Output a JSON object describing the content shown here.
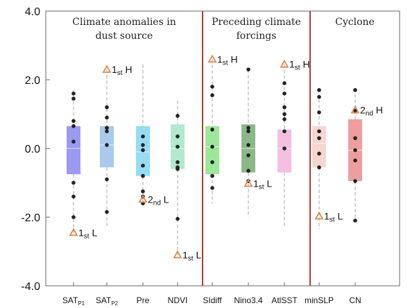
{
  "chart_data": {
    "type": "box",
    "ylim": [
      -4.0,
      4.0
    ],
    "yticks": [
      {
        "value": 4.0,
        "label": "4.0"
      },
      {
        "value": 2.0,
        "label": "2.0"
      },
      {
        "value": 0.0,
        "label": "0.0"
      },
      {
        "value": -2.0,
        "label": "-2.0"
      },
      {
        "value": -4.0,
        "label": "-4.0"
      }
    ],
    "sections": [
      {
        "title": [
          "Climate anomalies in",
          "dust source"
        ],
        "from": 0,
        "to": 3
      },
      {
        "title": [
          "Preceding climate",
          "forcings"
        ],
        "from": 4,
        "to": 6
      },
      {
        "title": [
          "Cyclone"
        ],
        "from": 7,
        "to": 8
      }
    ],
    "categories": [
      {
        "label": "SAT",
        "sub": "P1",
        "color": "#8f8ff0",
        "q1": -0.75,
        "median": 0.0,
        "q3": 0.65,
        "whisker_low": -2.45,
        "whisker_high": 1.7,
        "points": [
          1.6,
          1.45,
          0.8,
          0.65,
          0.2,
          -1.0,
          -1.4,
          -2.0
        ],
        "annotation": {
          "y": -2.45,
          "text": "1",
          "sub": "st",
          "suffix": " L"
        }
      },
      {
        "label": "SAT",
        "sub": "P2",
        "color": "#9fc4ea",
        "q1": -0.55,
        "median": 0.1,
        "q3": 0.65,
        "whisker_low": -2.25,
        "whisker_high": 2.3,
        "points": [
          1.2,
          0.9,
          0.6,
          0.5,
          0.1,
          -0.9,
          -1.85
        ],
        "annotation": {
          "y": 2.3,
          "text": "1",
          "sub": "st",
          "suffix": " H"
        }
      },
      {
        "label": "Pre",
        "sub": "",
        "color": "#8ad8f4",
        "q1": -0.8,
        "median": -0.1,
        "q3": 0.65,
        "whisker_low": -1.6,
        "whisker_high": 2.45,
        "points": [
          0.35,
          0.1,
          -0.05,
          -0.5,
          -0.8,
          -1.25,
          -1.4,
          -1.6
        ],
        "annotation": {
          "y": -1.48,
          "text": "2",
          "sub": "nd",
          "suffix": " L"
        }
      },
      {
        "label": "NDVI",
        "sub": "",
        "color": "#a9e6c9",
        "q1": -0.6,
        "median": 0.0,
        "q3": 0.7,
        "whisker_low": -3.1,
        "whisker_high": 1.4,
        "points": [
          0.95,
          0.35,
          0.05,
          -0.4,
          -0.55,
          -0.6,
          -2.05
        ],
        "annotation": {
          "y": -3.1,
          "text": "1",
          "sub": "st",
          "suffix": " L"
        }
      },
      {
        "label": "SIdiff",
        "sub": "",
        "color": "#90e58f",
        "q1": -0.75,
        "median": 0.05,
        "q3": 0.65,
        "whisker_low": -1.6,
        "whisker_high": 2.6,
        "points": [
          1.8,
          1.55,
          0.55,
          0.05,
          -0.4,
          -0.8,
          -1.15
        ],
        "annotation": {
          "y": 2.6,
          "text": "1",
          "sub": "st",
          "suffix": " H"
        }
      },
      {
        "label": "Nino3.4",
        "sub": "",
        "color": "#7fb07c",
        "q1": -0.7,
        "median": 0.0,
        "q3": 0.7,
        "whisker_low": -2.0,
        "whisker_high": 2.3,
        "points": [
          2.3,
          0.6,
          0.5,
          0.1,
          -0.2,
          -0.65,
          -0.95
        ],
        "annotation": {
          "y": -1.02,
          "text": "1",
          "sub": "st",
          "suffix": " L"
        }
      },
      {
        "label": "AtlSST",
        "sub": "",
        "color": "#f3b8de",
        "q1": -0.7,
        "median": 0.0,
        "q3": 0.55,
        "whisker_low": -2.25,
        "whisker_high": 2.45,
        "points": [
          1.9,
          1.6,
          1.2,
          1.0,
          0.85,
          0.5,
          0.0
        ],
        "annotation": {
          "y": 2.45,
          "text": "1",
          "sub": "st",
          "suffix": " H"
        }
      },
      {
        "label": "minSLP",
        "sub": "",
        "color": "#f6d2cb",
        "q1": -0.55,
        "median": 0.15,
        "q3": 0.65,
        "whisker_low": -2.35,
        "whisker_high": 1.75,
        "points": [
          1.7,
          1.5,
          1.05,
          0.5,
          0.3,
          -0.15,
          -0.55
        ],
        "annotation": {
          "y": -1.97,
          "text": "1",
          "sub": "st",
          "suffix": " L"
        }
      },
      {
        "label": "CN",
        "sub": "",
        "color": "#ec9394",
        "q1": -0.95,
        "median": -0.05,
        "q3": 0.85,
        "whisker_low": -2.1,
        "whisker_high": 1.75,
        "points": [
          1.7,
          1.1,
          0.3,
          -0.05,
          -0.35,
          -0.95,
          -2.1
        ],
        "annotation": {
          "y": 1.12,
          "text": "2",
          "sub": "nd",
          "suffix": " H"
        }
      }
    ],
    "grid": false,
    "separator_color": "#b03a3a",
    "annotation_color": "#e08a4e"
  }
}
